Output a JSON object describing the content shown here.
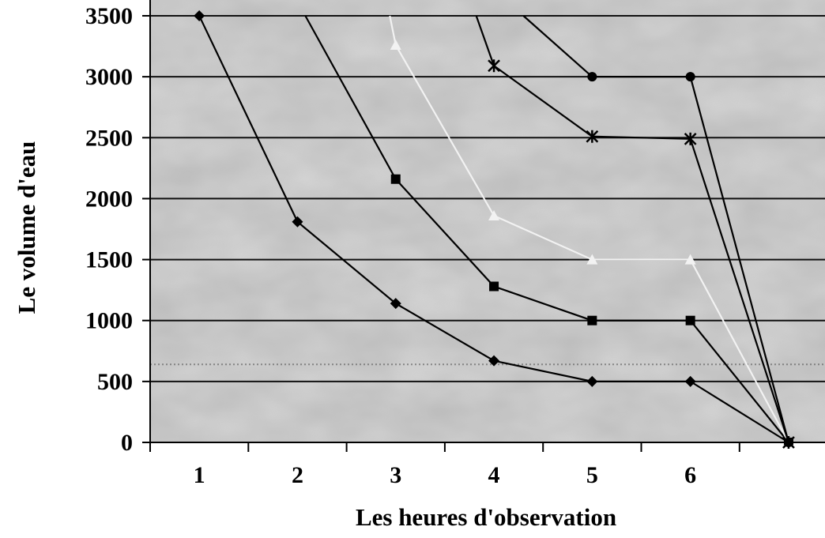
{
  "chart_data": {
    "type": "line",
    "title": "",
    "xlabel": "Les heures d'observation",
    "ylabel": "Le volume d'eau",
    "categories": [
      "1",
      "2",
      "3",
      "4",
      "5",
      "6"
    ],
    "ylim": [
      0,
      3500
    ],
    "yticks": [
      0,
      500,
      1000,
      1500,
      2000,
      2500,
      3000,
      3500
    ],
    "grid": "horizontal",
    "legend": "none",
    "background": "#b9b9b9",
    "series": [
      {
        "marker": "diamond",
        "color": "#000000",
        "points": [
          [
            1,
            3500
          ],
          [
            2,
            1810
          ],
          [
            3,
            1140
          ],
          [
            4,
            670
          ],
          [
            5,
            500
          ],
          [
            6,
            500
          ],
          [
            7,
            0
          ]
        ]
      },
      {
        "marker": "square",
        "color": "#000000",
        "points": [
          [
            2.08,
            3500
          ],
          [
            3,
            2160
          ],
          [
            4,
            1280
          ],
          [
            5,
            1000
          ],
          [
            6,
            1000
          ],
          [
            7,
            0
          ]
        ]
      },
      {
        "marker": "triangle",
        "color": "#f2f2f2",
        "points": [
          [
            2.94,
            3500
          ],
          [
            3,
            3260
          ],
          [
            4,
            1860
          ],
          [
            5,
            1500
          ],
          [
            6,
            1500
          ],
          [
            7,
            0
          ]
        ]
      },
      {
        "marker": "star",
        "color": "#000000",
        "points": [
          [
            3.82,
            3500
          ],
          [
            4,
            3090
          ],
          [
            5,
            2510
          ],
          [
            6,
            2490
          ],
          [
            7,
            0
          ]
        ]
      },
      {
        "marker": "circle",
        "color": "#000000",
        "points": [
          [
            4.3,
            3500
          ],
          [
            5,
            3000
          ],
          [
            6,
            3000
          ],
          [
            7,
            0
          ]
        ]
      }
    ]
  }
}
